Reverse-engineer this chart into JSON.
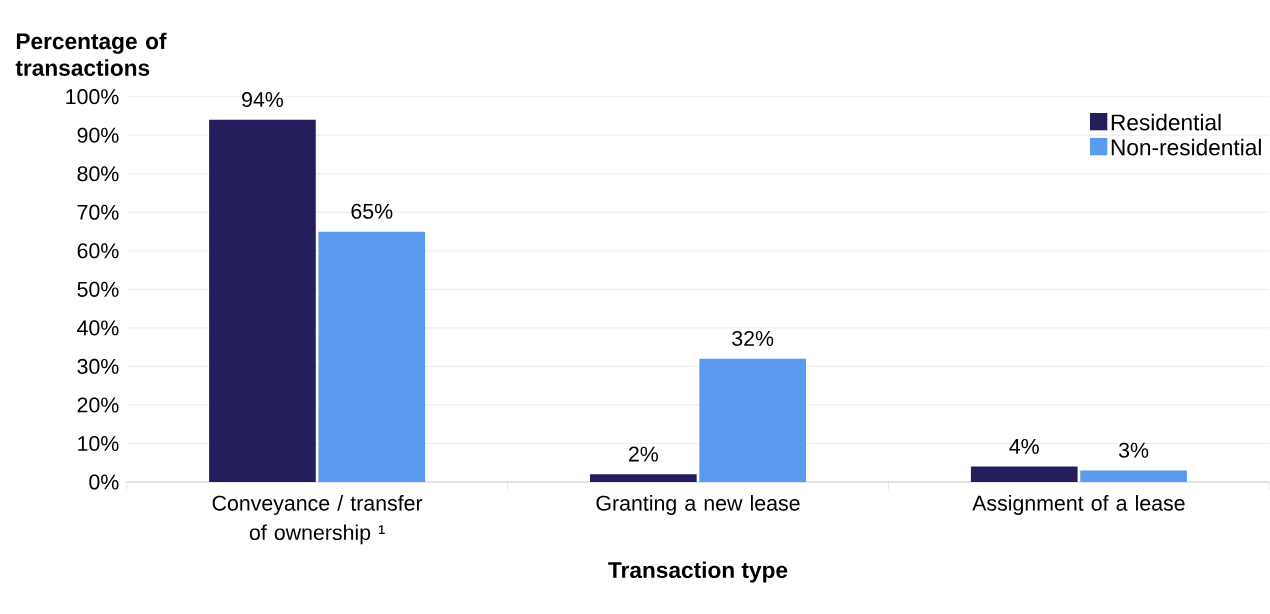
{
  "chart_data": {
    "type": "bar",
    "xlabel": "Transaction type",
    "ylabel": "Percentage of transactions",
    "categories": [
      "Conveyance / transfer of ownership ¹",
      "Granting a new lease",
      "Assignment of a lease"
    ],
    "series": [
      {
        "name": "Residential",
        "color": "#241f5c",
        "values": [
          94,
          2,
          4
        ],
        "value_labels": [
          "94%",
          "2%",
          "4%"
        ]
      },
      {
        "name": "Non-residential",
        "color": "#5b9bef",
        "values": [
          65,
          32,
          3
        ],
        "value_labels": [
          "65%",
          "32%",
          "3%"
        ]
      }
    ],
    "ylim": [
      0,
      100
    ],
    "yticks": [
      {
        "value": 0,
        "label": "0%"
      },
      {
        "value": 10,
        "label": "10%"
      },
      {
        "value": 20,
        "label": "20%"
      },
      {
        "value": 30,
        "label": "30%"
      },
      {
        "value": 40,
        "label": "40%"
      },
      {
        "value": 50,
        "label": "50%"
      },
      {
        "value": 60,
        "label": "60%"
      },
      {
        "value": 70,
        "label": "70%"
      },
      {
        "value": 80,
        "label": "80%"
      },
      {
        "value": 90,
        "label": "90%"
      },
      {
        "value": 100,
        "label": "100%"
      }
    ],
    "grid": "y",
    "legend": "top right"
  }
}
